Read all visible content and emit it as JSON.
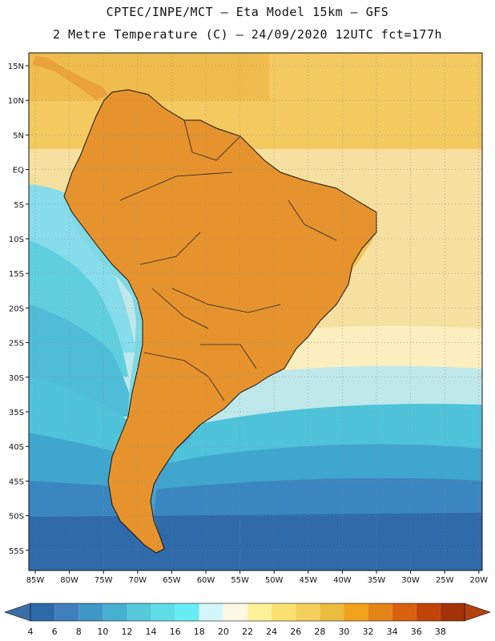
{
  "title": {
    "line1": "CPTEC/INPE/MCT –  Eta Model 15km – GFS",
    "line2": "2 Metre Temperature (C) – 24/09/2020 12UTC fct=177h"
  },
  "map": {
    "lat_labels": [
      "15N",
      "10N",
      "5N",
      "EQ",
      "5S",
      "10S",
      "15S",
      "20S",
      "25S",
      "30S",
      "35S",
      "40S",
      "45S",
      "50S",
      "55S"
    ],
    "lon_labels": [
      "85W",
      "80W",
      "75W",
      "70W",
      "65W",
      "60W",
      "55W",
      "50W",
      "45W",
      "40W",
      "35W",
      "30W",
      "25W",
      "20W"
    ],
    "ocean_color": "#f6e0a0"
  },
  "colorbar": {
    "labels": [
      "4",
      "6",
      "8",
      "10",
      "12",
      "14",
      "16",
      "18",
      "20",
      "22",
      "24",
      "26",
      "28",
      "30",
      "32",
      "34",
      "36",
      "38"
    ],
    "colors": [
      "#2d6aa8",
      "#3f7fbd",
      "#3f97c8",
      "#48aed2",
      "#56c8dc",
      "#5edde6",
      "#66ecf2",
      "#d4f6fb",
      "#fdf8e4",
      "#fdf19a",
      "#fbe070",
      "#f4cf5a",
      "#ebbc3e",
      "#f0a21a",
      "#e38418",
      "#d8600e",
      "#c24308",
      "#a43206"
    ],
    "low_color": "#3c6ea8",
    "high_color": "#b2410c"
  }
}
